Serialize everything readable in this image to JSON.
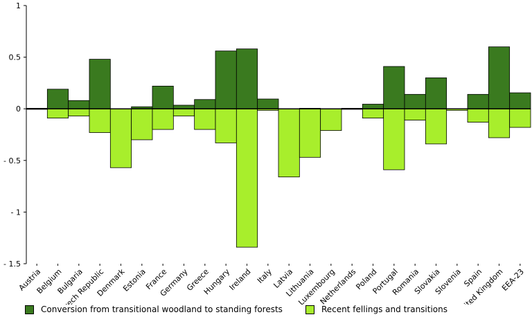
{
  "chart_data": {
    "type": "bar",
    "stacked": "diverging",
    "categories": [
      "Austria",
      "Belgium",
      "Bulgaria",
      "Czech Republic",
      "Denmark",
      "Estonia",
      "France",
      "Germany",
      "Greece",
      "Hungary",
      "Ireland",
      "Italy",
      "Latvia",
      "Lithuania",
      "Luxembourg",
      "Netherlands",
      "Poland",
      "Portugal",
      "Romania",
      "Slovakia",
      "Slovenia",
      "Spain",
      "United Kingdom",
      "EEA-23"
    ],
    "series": [
      {
        "name": "Conversion from transitional woodland to standing forests",
        "color": "#3a7a1f",
        "values": [
          0.005,
          0.19,
          0.08,
          0.48,
          0.0,
          0.02,
          0.22,
          0.035,
          0.09,
          0.56,
          0.58,
          0.095,
          0.0,
          0.005,
          0.0,
          0.005,
          0.045,
          0.41,
          0.14,
          0.3,
          0.0,
          0.14,
          0.6,
          0.155
        ]
      },
      {
        "name": "Recent fellings and transitions",
        "color": "#a8ee2c",
        "values": [
          -0.005,
          -0.09,
          -0.07,
          -0.23,
          -0.57,
          -0.3,
          -0.2,
          -0.07,
          -0.2,
          -0.33,
          -1.34,
          -0.015,
          -0.66,
          -0.47,
          -0.21,
          -0.005,
          -0.09,
          -0.59,
          -0.11,
          -0.34,
          -0.015,
          -0.13,
          -0.28,
          -0.18
        ]
      }
    ],
    "yticks": [
      1,
      0.5,
      0,
      -0.5,
      -1,
      -1.5
    ],
    "ytick_labels": [
      "1",
      "0.5",
      "0",
      "- 0.5",
      "- 1",
      "- 1.5"
    ],
    "ylim": [
      -1.5,
      1
    ],
    "grid": false,
    "legend_position": "bottom"
  }
}
